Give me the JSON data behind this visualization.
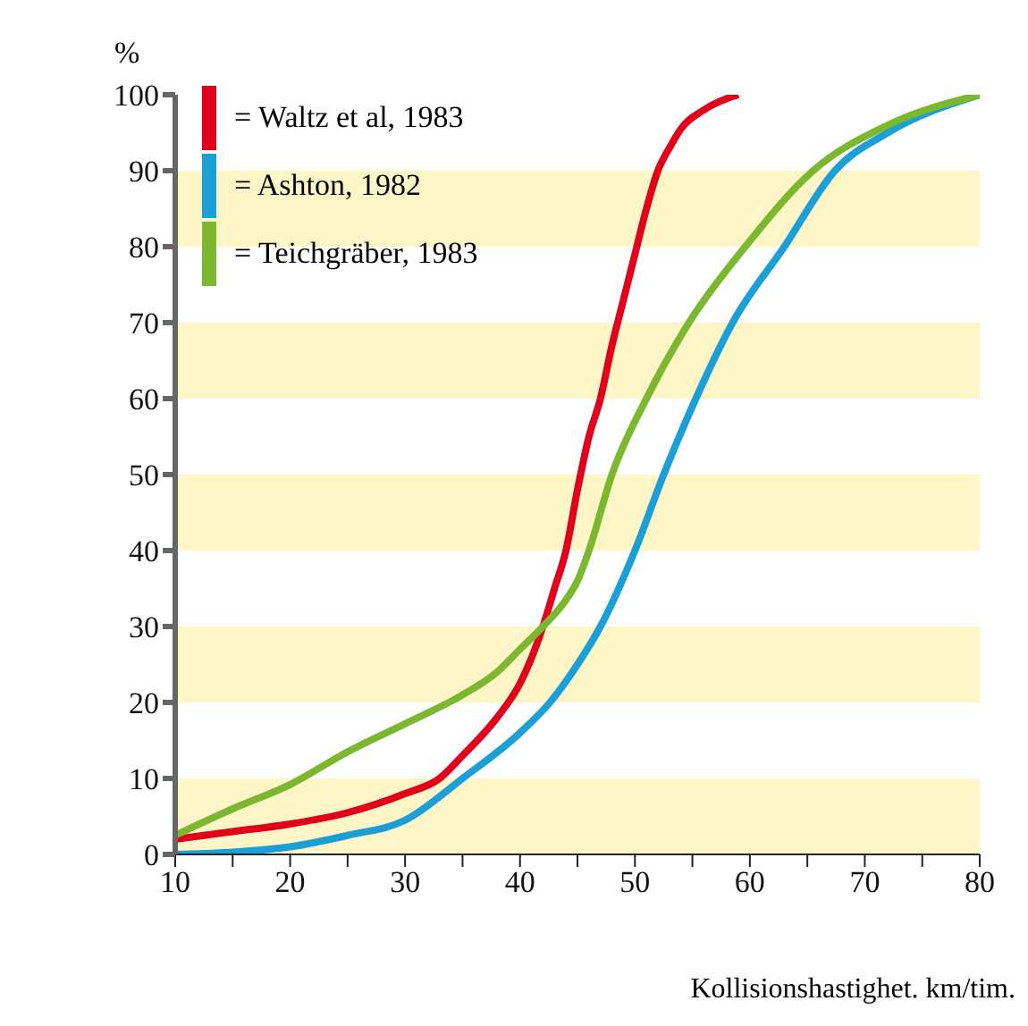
{
  "chart_data": {
    "type": "line",
    "ylabel": "%",
    "xlabel": "Kollisionshastighet. km/tim.",
    "xlim": [
      10,
      80
    ],
    "xticks": [
      10,
      {
        "value": 15,
        "label": null
      },
      20,
      {
        "value": 25,
        "label": null
      },
      30,
      {
        "value": 35,
        "label": null
      },
      40,
      {
        "value": 45,
        "label": null
      },
      50,
      {
        "value": 55,
        "label": null
      },
      60,
      {
        "value": 65,
        "label": null
      },
      70,
      {
        "value": 75,
        "label": null
      },
      80
    ],
    "ylim": [
      0,
      100
    ],
    "yticks": [
      0,
      10,
      20,
      30,
      40,
      50,
      60,
      70,
      80,
      90,
      100
    ],
    "grid": false,
    "legend": "top left",
    "marker": "none",
    "line_style": "solid",
    "bands": [
      {
        "axis": "y",
        "from": 0,
        "to": 10,
        "color": "#fff6c8"
      },
      {
        "axis": "y",
        "from": 20,
        "to": 30,
        "color": "#fff6c8"
      },
      {
        "axis": "y",
        "from": 40,
        "to": 50,
        "color": "#fff6c8"
      },
      {
        "axis": "y",
        "from": 60,
        "to": 70,
        "color": "#fff6c8"
      },
      {
        "axis": "y",
        "from": 80,
        "to": 90,
        "color": "#fff6c8"
      }
    ],
    "series": [
      {
        "name": "= Waltz et al, 1983",
        "color": "#e0001b",
        "x": [
          10,
          15,
          20,
          25,
          30,
          33,
          35,
          38,
          40,
          42,
          43,
          44,
          45,
          46,
          47,
          48,
          49,
          50,
          51,
          52,
          53,
          54,
          56,
          58,
          59
        ],
        "values": [
          2,
          3,
          4,
          5.5,
          8,
          10,
          13,
          18,
          22.5,
          30,
          35,
          40,
          48,
          55,
          60,
          67,
          73,
          79,
          85,
          90,
          93,
          95.5,
          98,
          99.5,
          100
        ]
      },
      {
        "name": "= Ashton, 1982",
        "color": "#1a9fd6",
        "x": [
          10,
          15,
          20,
          25,
          30,
          35,
          40,
          42.6,
          45,
          47,
          50,
          52.5,
          55.3,
          58.5,
          63,
          67.4,
          72,
          80
        ],
        "values": [
          0,
          0.3,
          1,
          2.5,
          4.5,
          10,
          16,
          20,
          25,
          30,
          40,
          50,
          60,
          70,
          80,
          90,
          95,
          100
        ]
      },
      {
        "name": "= Teichgräber, 1983",
        "color": "#7cb82f",
        "x": [
          10,
          15,
          20,
          25,
          30,
          35,
          38,
          40,
          42,
          44,
          45,
          46,
          48,
          51,
          54.7,
          59.6,
          65.5,
          72,
          80
        ],
        "values": [
          2.5,
          6,
          9.2,
          13.5,
          17.2,
          21,
          24,
          27,
          30,
          33.5,
          36,
          40,
          50,
          60,
          70,
          80,
          90,
          96,
          100
        ]
      }
    ]
  }
}
